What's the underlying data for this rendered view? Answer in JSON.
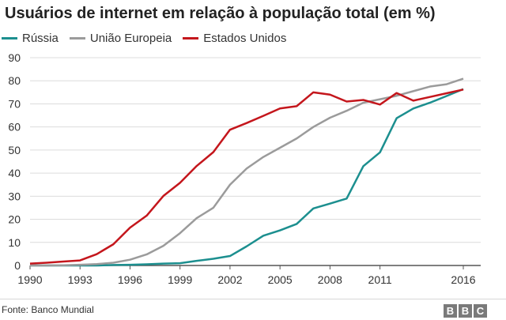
{
  "chart_data": {
    "type": "line",
    "title": "Usuários de internet em relação à população total (em %)",
    "source": "Fonte: Banco Mundial",
    "logo_letters": [
      "B",
      "B",
      "C"
    ],
    "x_ticks": [
      1990,
      1993,
      1996,
      1999,
      2002,
      2005,
      2008,
      2011,
      2016
    ],
    "xlim": [
      1990,
      2016
    ],
    "y_ticks": [
      0,
      10,
      20,
      30,
      40,
      50,
      60,
      70,
      80,
      90
    ],
    "ylim": [
      0,
      90
    ],
    "grid": "horizontal",
    "legend_position": "top-left",
    "series": [
      {
        "name": "Rússia",
        "color": "#1c8f8f",
        "x": [
          1990,
          1991,
          1992,
          1993,
          1994,
          1995,
          1996,
          1997,
          1998,
          1999,
          2000,
          2001,
          2002,
          2003,
          2004,
          2005,
          2006,
          2007,
          2008,
          2009,
          2010,
          2011,
          2012,
          2013,
          2014,
          2015,
          2016
        ],
        "values": [
          0,
          0,
          0,
          0,
          0,
          0.2,
          0.3,
          0.5,
          0.8,
          1.0,
          2.0,
          2.9,
          4.1,
          8.3,
          12.9,
          15.2,
          18.0,
          24.7,
          26.8,
          29.0,
          43.0,
          49.0,
          63.8,
          68.0,
          70.5,
          73.4,
          76.4
        ]
      },
      {
        "name": "União Europeia",
        "color": "#9b9b9b",
        "x": [
          1990,
          1991,
          1992,
          1993,
          1994,
          1995,
          1996,
          1997,
          1998,
          1999,
          2000,
          2001,
          2002,
          2003,
          2004,
          2005,
          2006,
          2007,
          2008,
          2009,
          2010,
          2011,
          2012,
          2013,
          2014,
          2015,
          2016
        ],
        "values": [
          0,
          0,
          0.1,
          0.3,
          0.6,
          1.2,
          2.5,
          4.8,
          8.5,
          14.0,
          20.5,
          25.0,
          35.0,
          42.0,
          47.0,
          51.0,
          55.0,
          60.0,
          64.0,
          67.0,
          70.5,
          72.0,
          73.5,
          75.5,
          77.5,
          78.5,
          80.9
        ]
      },
      {
        "name": "Estados Unidos",
        "color": "#c4161c",
        "x": [
          1990,
          1991,
          1992,
          1993,
          1994,
          1995,
          1996,
          1997,
          1998,
          1999,
          2000,
          2001,
          2002,
          2003,
          2004,
          2005,
          2006,
          2007,
          2008,
          2009,
          2010,
          2011,
          2012,
          2013,
          2014,
          2015,
          2016
        ],
        "values": [
          0.8,
          1.2,
          1.7,
          2.2,
          4.9,
          9.2,
          16.4,
          21.6,
          30.1,
          35.8,
          43.1,
          49.1,
          58.8,
          61.7,
          64.8,
          68.0,
          69.0,
          75.0,
          74.0,
          71.0,
          71.7,
          69.7,
          74.7,
          71.4,
          73.0,
          74.6,
          76.2
        ]
      }
    ]
  }
}
